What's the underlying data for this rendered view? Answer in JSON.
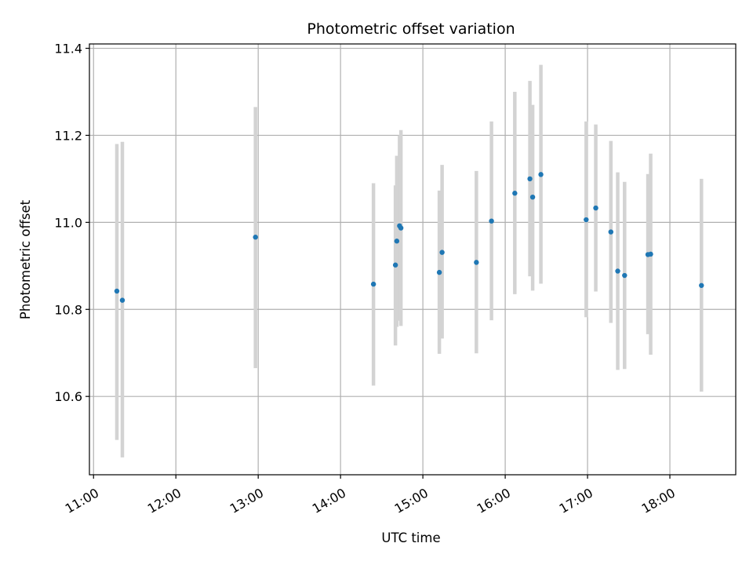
{
  "chart_data": {
    "type": "scatter",
    "title": "Photometric offset variation",
    "xlabel": "UTC time",
    "ylabel": "Photometric offset",
    "x_tick_labels": [
      "11:00",
      "12:00",
      "13:00",
      "14:00",
      "15:00",
      "16:00",
      "17:00",
      "18:00"
    ],
    "x_tick_values": [
      "11:00",
      "12:00",
      "13:00",
      "14:00",
      "15:00",
      "16:00",
      "17:00",
      "18:00"
    ],
    "y_tick_labels": [
      "10.6",
      "10.8",
      "11.0",
      "11.2",
      "11.4"
    ],
    "y_tick_values": [
      10.6,
      10.8,
      11.0,
      11.2,
      11.4
    ],
    "xlim": [
      "10:57",
      "18:48"
    ],
    "ylim": [
      10.42,
      11.41
    ],
    "grid": true,
    "colors": {
      "points": "#1f77b4",
      "errorbars": "#d3d3d3",
      "grid": "#b0b0b0",
      "axes": "#000000"
    },
    "points": [
      {
        "x": "11:17",
        "y": 10.842,
        "ylow": 10.5,
        "yhigh": 11.18
      },
      {
        "x": "11:21",
        "y": 10.821,
        "ylow": 10.46,
        "yhigh": 11.185
      },
      {
        "x": "12:58",
        "y": 10.966,
        "ylow": 10.665,
        "yhigh": 11.265
      },
      {
        "x": "14:24",
        "y": 10.858,
        "ylow": 10.625,
        "yhigh": 11.09
      },
      {
        "x": "14:40",
        "y": 10.902,
        "ylow": 10.717,
        "yhigh": 11.085
      },
      {
        "x": "14:41",
        "y": 10.957,
        "ylow": 10.76,
        "yhigh": 11.153
      },
      {
        "x": "14:43",
        "y": 10.992,
        "ylow": 10.774,
        "yhigh": 11.2
      },
      {
        "x": "14:44",
        "y": 10.987,
        "ylow": 10.762,
        "yhigh": 11.212
      },
      {
        "x": "15:12",
        "y": 10.885,
        "ylow": 10.698,
        "yhigh": 11.073
      },
      {
        "x": "15:14",
        "y": 10.931,
        "ylow": 10.733,
        "yhigh": 11.132
      },
      {
        "x": "15:39",
        "y": 10.908,
        "ylow": 10.699,
        "yhigh": 11.118
      },
      {
        "x": "15:50",
        "y": 11.003,
        "ylow": 10.775,
        "yhigh": 11.232
      },
      {
        "x": "16:07",
        "y": 11.067,
        "ylow": 10.835,
        "yhigh": 11.3
      },
      {
        "x": "16:18",
        "y": 11.1,
        "ylow": 10.876,
        "yhigh": 11.325
      },
      {
        "x": "16:20",
        "y": 11.058,
        "ylow": 10.843,
        "yhigh": 11.27
      },
      {
        "x": "16:26",
        "y": 11.11,
        "ylow": 10.859,
        "yhigh": 11.362
      },
      {
        "x": "16:59",
        "y": 11.006,
        "ylow": 10.782,
        "yhigh": 11.232
      },
      {
        "x": "17:06",
        "y": 11.033,
        "ylow": 10.841,
        "yhigh": 11.225
      },
      {
        "x": "17:17",
        "y": 10.978,
        "ylow": 10.769,
        "yhigh": 11.187
      },
      {
        "x": "17:22",
        "y": 10.888,
        "ylow": 10.661,
        "yhigh": 11.115
      },
      {
        "x": "17:27",
        "y": 10.878,
        "ylow": 10.663,
        "yhigh": 11.093
      },
      {
        "x": "17:44",
        "y": 10.926,
        "ylow": 10.743,
        "yhigh": 11.111
      },
      {
        "x": "17:46",
        "y": 10.927,
        "ylow": 10.696,
        "yhigh": 11.158
      },
      {
        "x": "18:23",
        "y": 10.855,
        "ylow": 10.611,
        "yhigh": 11.1
      }
    ]
  }
}
